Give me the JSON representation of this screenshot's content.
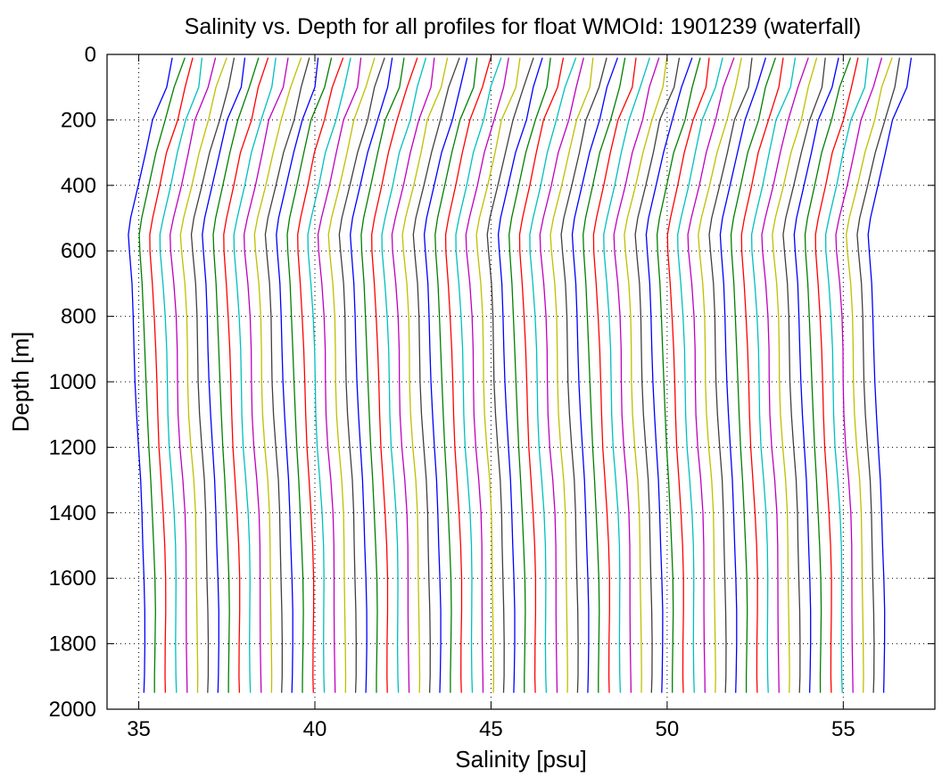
{
  "chart_data": {
    "type": "line",
    "title": "Salinity vs. Depth for all profiles for float WMOId: 1901239 (waterfall)",
    "xlabel": "Salinity [psu]",
    "ylabel": "Depth [m]",
    "xlim": [
      34.1,
      57.6
    ],
    "ylim": [
      0,
      2000
    ],
    "y_reversed": true,
    "grid": true,
    "x_ticks": [
      35,
      40,
      45,
      50,
      55
    ],
    "y_ticks": [
      0,
      200,
      400,
      600,
      800,
      1000,
      1200,
      1400,
      1600,
      1800,
      2000
    ],
    "waterfall": {
      "profile_count": 71,
      "offset_step_psu": 0.3,
      "depths": [
        0,
        100,
        200,
        300,
        400,
        500,
        550,
        600,
        700,
        800,
        900,
        1000,
        1100,
        1200,
        1300,
        1400,
        1500,
        1600,
        1700,
        1800,
        1900,
        1950
      ],
      "base_profile": [
        35.95,
        35.75,
        35.45,
        35.2,
        35.0,
        34.78,
        34.7,
        34.72,
        34.8,
        34.85,
        34.88,
        34.9,
        34.93,
        34.98,
        35.05,
        35.1,
        35.13,
        35.15,
        35.16,
        35.16,
        35.16,
        35.16
      ],
      "colors": [
        "#0000ff",
        "#008000",
        "#ff0000",
        "#00bfbf",
        "#bf00bf",
        "#bfbf00",
        "#404040"
      ]
    }
  }
}
